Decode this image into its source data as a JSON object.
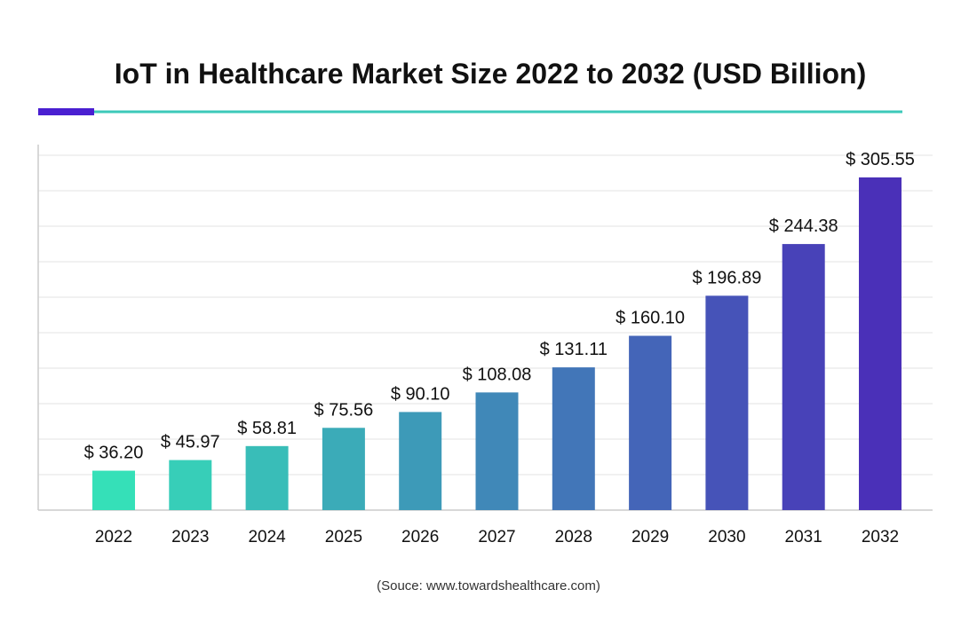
{
  "colors": {
    "accent_dark": "#4a1fd1",
    "accent_line": "#3cc9b9",
    "grid": "#e3e3e3",
    "axis": "#cccccc",
    "bar_start": "#35e0b8",
    "bar_end": "#4a30b8"
  },
  "chart_data": {
    "type": "bar",
    "title": "IoT in Healthcare Market Size 2022 to 2032 (USD Billion)",
    "xlabel": "",
    "ylabel": "",
    "categories": [
      "2022",
      "2023",
      "2024",
      "2025",
      "2026",
      "2027",
      "2028",
      "2029",
      "2030",
      "2031",
      "2032"
    ],
    "values": [
      36.2,
      45.97,
      58.81,
      75.56,
      90.1,
      108.08,
      131.11,
      160.1,
      196.89,
      244.38,
      305.55
    ],
    "value_labels": [
      "$ 36.20",
      "$ 45.97",
      "$ 58.81",
      "$ 75.56",
      "$ 90.10",
      "$ 108.08",
      "$ 131.11",
      "$ 160.10",
      "$ 196.89",
      "$ 244.38",
      "$ 305.55"
    ],
    "ylim": [
      0,
      330
    ],
    "grid": true,
    "legend": "none",
    "source": "(Souce: www.towardshealthcare.com)"
  }
}
